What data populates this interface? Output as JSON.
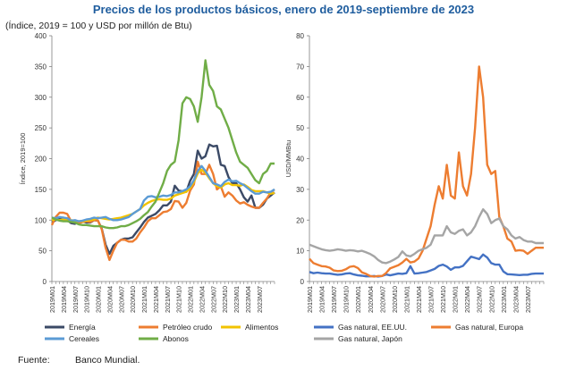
{
  "title": "Precios de los productos básicos, enero de 2019-septiembre de 2023",
  "subtitle": "(Índice, 2019 = 100 y USD por millón de Btu)",
  "source_label": "Fuente:",
  "source_value": "Banco Mundial.",
  "chart_data": [
    {
      "type": "line",
      "ylabel": "Índice, 2019=100",
      "ylim": [
        0,
        400
      ],
      "yticks": [
        0,
        50,
        100,
        150,
        200,
        250,
        300,
        350,
        400
      ],
      "xtick_labels": [
        "2019M01",
        "2019M04",
        "2019M07",
        "2019M10",
        "2020M01",
        "2020M04",
        "2020M07",
        "2020M10",
        "2021M01",
        "2021M04",
        "2021M07",
        "2021M10",
        "2022M01",
        "2022M04",
        "2022M07",
        "2022M10",
        "2023M01",
        "2023M04",
        "2023M07"
      ],
      "grid": false,
      "legend_position": "bottom",
      "series": [
        {
          "name": "Energía",
          "color": "#3b4a66",
          "values": [
            96,
            100,
            102,
            104,
            100,
            95,
            94,
            97,
            98,
            96,
            96,
            100,
            99,
            86,
            60,
            45,
            58,
            63,
            68,
            70,
            70,
            72,
            80,
            88,
            97,
            104,
            107,
            110,
            116,
            124,
            124,
            130,
            156,
            148,
            147,
            146,
            164,
            175,
            213,
            200,
            204,
            223,
            220,
            221,
            190,
            188,
            170,
            160,
            160,
            150,
            137,
            130,
            140,
            120,
            120,
            125,
            135,
            140,
            145
          ]
        },
        {
          "name": "Petróleo crudo",
          "color": "#ed7d31",
          "values": [
            92,
            105,
            112,
            112,
            110,
            98,
            98,
            95,
            97,
            98,
            97,
            100,
            99,
            85,
            55,
            35,
            50,
            63,
            68,
            68,
            65,
            65,
            70,
            80,
            88,
            98,
            103,
            103,
            108,
            113,
            114,
            118,
            131,
            130,
            120,
            128,
            148,
            158,
            195,
            175,
            175,
            190,
            175,
            150,
            155,
            138,
            145,
            140,
            132,
            127,
            129,
            125,
            122,
            120,
            120,
            128,
            135,
            145,
            150
          ]
        },
        {
          "name": "Alimentos",
          "color": "#f2c300",
          "values": [
            100,
            101,
            100,
            101,
            101,
            100,
            99,
            98,
            98,
            99,
            100,
            101,
            104,
            103,
            102,
            101,
            102,
            103,
            104,
            106,
            108,
            110,
            114,
            118,
            124,
            128,
            131,
            133,
            134,
            133,
            133,
            135,
            140,
            142,
            144,
            146,
            152,
            162,
            176,
            182,
            177,
            168,
            160,
            155,
            153,
            158,
            160,
            157,
            157,
            156,
            158,
            154,
            149,
            147,
            147,
            147,
            145,
            143,
            144
          ]
        },
        {
          "name": "Cereales",
          "color": "#5b9bd5",
          "values": [
            104,
            103,
            105,
            104,
            103,
            99,
            100,
            98,
            99,
            101,
            102,
            104,
            103,
            104,
            105,
            102,
            100,
            100,
            101,
            103,
            105,
            110,
            114,
            118,
            132,
            138,
            139,
            137,
            138,
            140,
            139,
            141,
            145,
            145,
            147,
            150,
            155,
            165,
            180,
            188,
            180,
            170,
            160,
            158,
            155,
            162,
            166,
            163,
            164,
            160,
            157,
            152,
            147,
            143,
            143,
            146,
            145,
            146,
            150
          ]
        },
        {
          "name": "Abonos",
          "color": "#70ad47",
          "values": [
            104,
            101,
            99,
            98,
            98,
            97,
            96,
            93,
            92,
            92,
            91,
            90,
            90,
            90,
            88,
            87,
            87,
            88,
            90,
            90,
            92,
            95,
            98,
            102,
            108,
            113,
            122,
            130,
            145,
            160,
            180,
            190,
            195,
            230,
            290,
            300,
            297,
            285,
            260,
            300,
            360,
            320,
            310,
            285,
            280,
            265,
            250,
            230,
            210,
            195,
            190,
            185,
            175,
            165,
            160,
            175,
            180,
            192,
            192
          ]
        }
      ]
    },
    {
      "type": "line",
      "ylabel": "USD/MMBtu",
      "ylim": [
        0,
        80
      ],
      "yticks": [
        0,
        10,
        20,
        30,
        40,
        50,
        60,
        70,
        80
      ],
      "xtick_labels": [
        "2019M01",
        "2019M04",
        "2019M07",
        "2019M10",
        "2020M01",
        "2020M04",
        "2020M07",
        "2020M10",
        "2021M01",
        "2021M04",
        "2021M07",
        "2021M10",
        "2022M01",
        "2022M04",
        "2022M07",
        "2022M10",
        "2023M01",
        "2023M04",
        "2023M07"
      ],
      "grid": false,
      "legend_position": "bottom",
      "series": [
        {
          "name": "Gas natural, EE.UU.",
          "color": "#4472c4",
          "values": [
            3.1,
            2.7,
            2.9,
            2.7,
            2.6,
            2.6,
            2.4,
            2.2,
            2.3,
            2.6,
            2.7,
            2.3,
            2.0,
            1.9,
            1.7,
            1.7,
            1.8,
            1.6,
            1.8,
            2.3,
            2.0,
            2.3,
            2.6,
            2.5,
            2.7,
            5.0,
            2.6,
            2.7,
            2.9,
            3.1,
            3.6,
            4.1,
            5.1,
            5.5,
            4.9,
            3.8,
            4.6,
            4.6,
            5.1,
            6.6,
            8.1,
            7.7,
            7.3,
            8.8,
            7.8,
            6.0,
            5.5,
            5.5,
            3.3,
            2.4,
            2.3,
            2.2,
            2.1,
            2.2,
            2.2,
            2.5,
            2.6,
            2.6,
            2.6
          ]
        },
        {
          "name": "Gas natural, Europa",
          "color": "#ed7d31",
          "values": [
            7.4,
            6.0,
            5.5,
            5.0,
            4.9,
            4.5,
            3.6,
            3.4,
            3.5,
            4.0,
            4.8,
            5.0,
            4.4,
            3.0,
            2.5,
            1.8,
            1.6,
            1.8,
            1.8,
            2.8,
            4.3,
            4.8,
            5.3,
            6.2,
            7.4,
            6.2,
            6.5,
            7.5,
            10.0,
            14.0,
            18.0,
            25.0,
            31.0,
            27.0,
            38.0,
            28.0,
            27.0,
            42.0,
            31.0,
            28.0,
            35.0,
            50.0,
            70.0,
            60.0,
            38.0,
            35.0,
            36.0,
            21.0,
            18.0,
            14.0,
            13.0,
            10.0,
            10.2,
            10.0,
            9.0,
            10.0,
            11.0,
            11.0,
            11.0
          ]
        },
        {
          "name": "Gas natural, Japón",
          "color": "#a5a5a5",
          "values": [
            12.0,
            11.5,
            11.0,
            10.5,
            10.2,
            10.0,
            10.2,
            10.5,
            10.3,
            10.0,
            10.2,
            10.1,
            9.8,
            10.0,
            9.5,
            9.0,
            8.2,
            7.0,
            6.2,
            6.0,
            6.5,
            7.2,
            8.0,
            9.8,
            8.5,
            8.2,
            9.0,
            10.0,
            10.5,
            11.0,
            12.0,
            15.0,
            15.0,
            15.0,
            18.0,
            16.0,
            15.5,
            16.5,
            17.0,
            15.0,
            16.0,
            18.0,
            21.0,
            23.5,
            22.0,
            19.0,
            20.0,
            20.5,
            18.0,
            17.0,
            15.0,
            14.0,
            14.5,
            13.5,
            13.0,
            13.0,
            12.5,
            12.5,
            12.5
          ]
        }
      ]
    }
  ]
}
